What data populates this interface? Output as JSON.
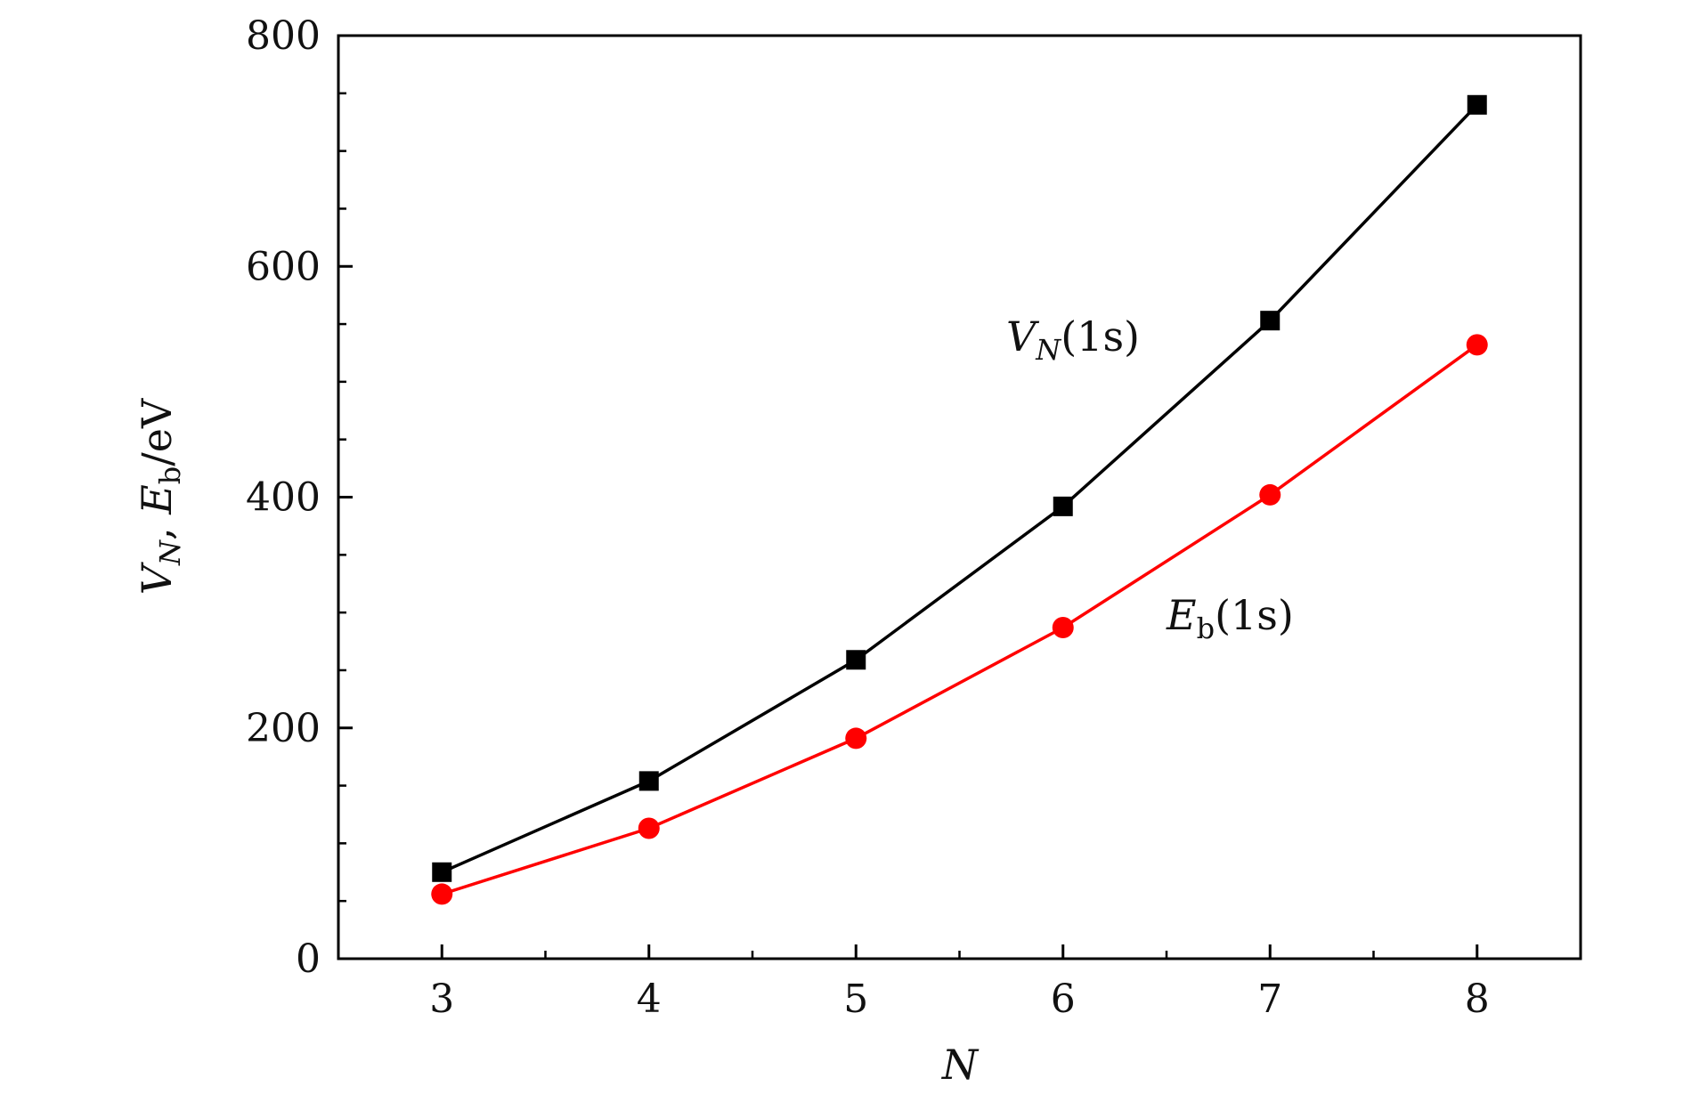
{
  "chart_data": {
    "type": "line",
    "title": "",
    "xlabel": "N",
    "ylabel": {
      "parts": [
        {
          "text": "V",
          "italic": true
        },
        {
          "text": "N",
          "italic": true,
          "sub": true
        },
        {
          "text": ", ",
          "italic": false
        },
        {
          "text": "E",
          "italic": true
        },
        {
          "text": "b",
          "italic": false,
          "sub": true
        },
        {
          "text": "/eV",
          "italic": false
        }
      ]
    },
    "xlim": [
      2.5,
      8.5
    ],
    "ylim": [
      0,
      800
    ],
    "x_ticks": [
      3,
      4,
      5,
      6,
      7,
      8
    ],
    "x_tick_labels": [
      "3",
      "4",
      "5",
      "6",
      "7",
      "8"
    ],
    "x_minor_ticks": [
      3.5,
      4.5,
      5.5,
      6.5,
      7.5
    ],
    "y_ticks": [
      0,
      200,
      400,
      600,
      800
    ],
    "y_tick_labels": [
      "0",
      "200",
      "400",
      "600",
      "800"
    ],
    "y_minor_ticks": [
      50,
      100,
      150,
      250,
      300,
      350,
      450,
      500,
      550,
      650,
      700,
      750
    ],
    "grid": false,
    "legend": "none",
    "x": [
      3,
      4,
      5,
      6,
      7,
      8
    ],
    "series": [
      {
        "values": [
          75,
          154,
          259,
          392,
          553,
          740
        ],
        "color": "#000000",
        "marker": "square",
        "annotation": {
          "parts": [
            {
              "text": "V",
              "italic": true
            },
            {
              "text": "N",
              "italic": true,
              "sub": true
            },
            {
              "text": "(1s)",
              "italic": false
            }
          ]
        }
      },
      {
        "values": [
          56,
          113,
          191,
          287,
          402,
          532
        ],
        "color": "#ff0000",
        "marker": "circle",
        "annotation": {
          "parts": [
            {
              "text": "E",
              "italic": true
            },
            {
              "text": "b",
              "italic": false,
              "sub": true
            },
            {
              "text": "(1s)",
              "italic": false
            }
          ]
        }
      }
    ]
  }
}
